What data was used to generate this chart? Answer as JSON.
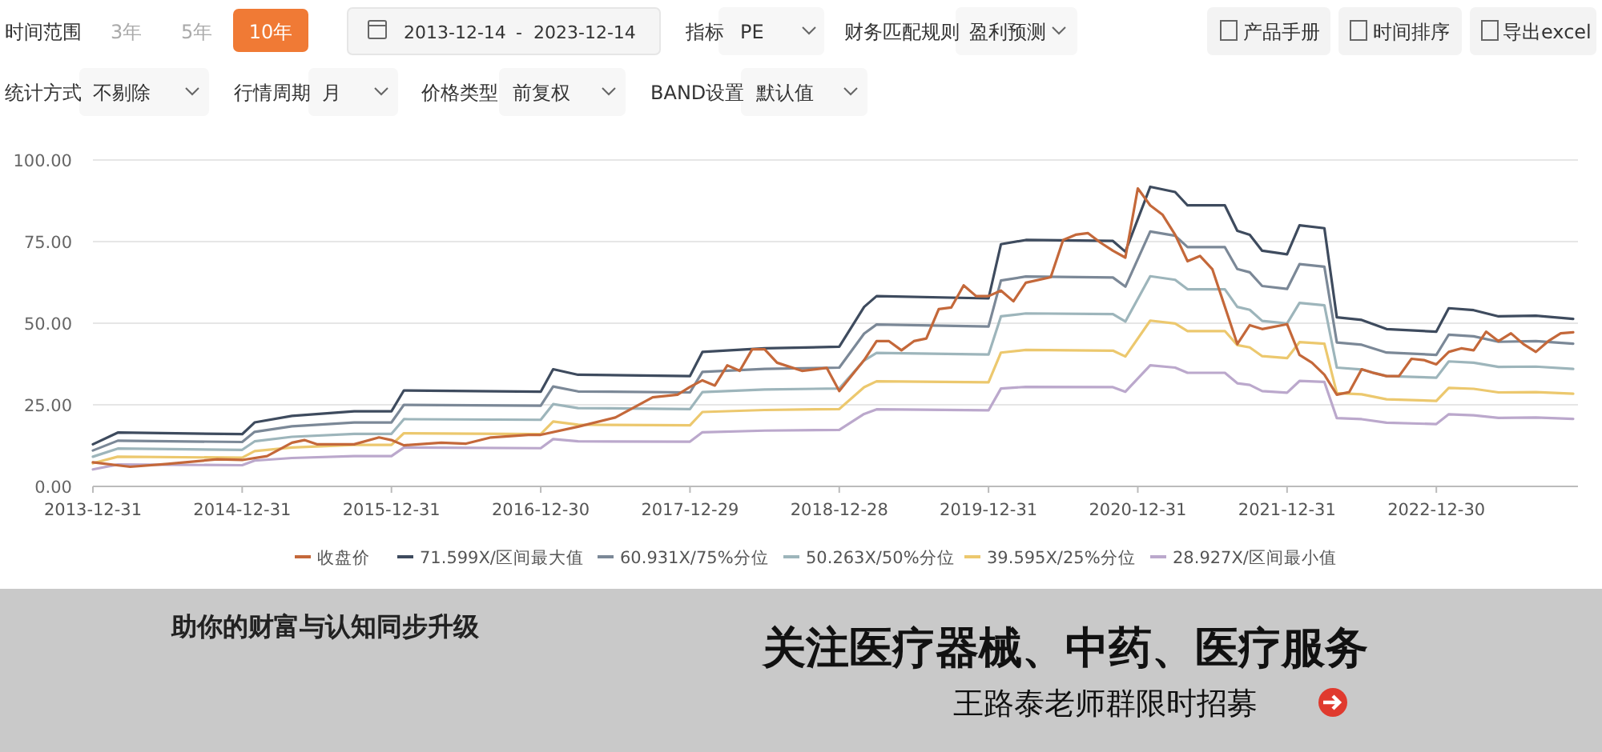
{
  "chart_data": {
    "type": "line",
    "xlim": [
      "2013-12",
      "2023-11"
    ],
    "ylim": [
      0,
      100
    ],
    "xticks": [
      {
        "value": "2013-12",
        "label": "2013-12-31"
      },
      {
        "value": "2014-12",
        "label": "2014-12-31"
      },
      {
        "value": "2015-12",
        "label": "2015-12-31"
      },
      {
        "value": "2016-12",
        "label": "2016-12-30"
      },
      {
        "value": "2017-12",
        "label": "2017-12-29"
      },
      {
        "value": "2018-12",
        "label": "2018-12-28"
      },
      {
        "value": "2019-12",
        "label": "2019-12-31"
      },
      {
        "value": "2020-12",
        "label": "2020-12-31"
      },
      {
        "value": "2021-12",
        "label": "2021-12-31"
      },
      {
        "value": "2022-12",
        "label": "2022-12-30"
      }
    ],
    "yticks": [
      {
        "value": 0,
        "label": "0.00"
      },
      {
        "value": 25,
        "label": "25.00"
      },
      {
        "value": 50,
        "label": "50.00"
      },
      {
        "value": 75,
        "label": "75.00"
      },
      {
        "value": 100,
        "label": "100.00"
      }
    ],
    "grid": "y",
    "legend": "bottom",
    "series": [
      {
        "name": "收盘价",
        "color": "#c4683a",
        "x": [
          "2013-12",
          "2014-03",
          "2014-06",
          "2014-10",
          "2014-12",
          "2015-02",
          "2015-04",
          "2015-05",
          "2015-06",
          "2015-09",
          "2015-11",
          "2015-12",
          "2016-01",
          "2016-04",
          "2016-06",
          "2016-08",
          "2016-11",
          "2016-12",
          "2017-03",
          "2017-06",
          "2017-09",
          "2017-11",
          "2017-12",
          "2018-01",
          "2018-02",
          "2018-03",
          "2018-04",
          "2018-05",
          "2018-06",
          "2018-07",
          "2018-09",
          "2018-11",
          "2018-12",
          "2019-02",
          "2019-03",
          "2019-04",
          "2019-05",
          "2019-06",
          "2019-07",
          "2019-08",
          "2019-09",
          "2019-10",
          "2019-11",
          "2019-12",
          "2020-01",
          "2020-02",
          "2020-03",
          "2020-05",
          "2020-06",
          "2020-07",
          "2020-08",
          "2020-09",
          "2020-10",
          "2020-11",
          "2020-12",
          "2021-01",
          "2021-02",
          "2021-03",
          "2021-04",
          "2021-05",
          "2021-06",
          "2021-08",
          "2021-09",
          "2021-10",
          "2021-12",
          "2022-01",
          "2022-02",
          "2022-03",
          "2022-04",
          "2022-05",
          "2022-06",
          "2022-07",
          "2022-08",
          "2022-09",
          "2022-10",
          "2022-11",
          "2022-12",
          "2023-01",
          "2023-02",
          "2023-03",
          "2023-04",
          "2023-05",
          "2023-06",
          "2023-07",
          "2023-08",
          "2023-09",
          "2023-10",
          "2023-11"
        ],
        "values": [
          7.4,
          6.0,
          6.9,
          8.3,
          8.1,
          9.3,
          13.4,
          14.2,
          12.9,
          12.9,
          15.0,
          14.2,
          12.6,
          13.4,
          13.1,
          15.0,
          15.8,
          15.8,
          18.3,
          21.1,
          27.3,
          28.1,
          30.5,
          32.5,
          30.9,
          37.1,
          35.4,
          42.0,
          42.0,
          37.9,
          35.4,
          36.3,
          29.2,
          38.7,
          44.5,
          44.5,
          41.7,
          44.5,
          45.3,
          54.3,
          54.8,
          61.6,
          58.3,
          58.3,
          60.0,
          56.7,
          62.4,
          64.1,
          75.5,
          77.1,
          77.6,
          74.7,
          72.2,
          70.1,
          91.3,
          86.1,
          83.2,
          77.1,
          69.0,
          70.6,
          66.5,
          43.6,
          49.4,
          48.2,
          49.7,
          40.3,
          37.9,
          34.2,
          28.1,
          28.9,
          35.9,
          34.7,
          33.8,
          33.8,
          39.1,
          38.7,
          37.4,
          41.2,
          42.3,
          41.7,
          47.4,
          44.5,
          46.9,
          43.6,
          41.2,
          44.5,
          46.9,
          47.2
        ]
      },
      {
        "name": "71.599X/区间最大值",
        "color": "#3e4b5e",
        "values": [
          12.9,
          16.5,
          16.0,
          19.6,
          21.6,
          23.0,
          23.0,
          29.4,
          29.0,
          35.9,
          34.2,
          33.8,
          41.2,
          42.3,
          42.8,
          55.0,
          58.3,
          57.6,
          74.2,
          75.5,
          75.2,
          71.9,
          91.8,
          90.2,
          86.1,
          86.1,
          78.3,
          77.1,
          72.2,
          71.1,
          80.0,
          79.1,
          51.8,
          51.0,
          48.2,
          47.4,
          54.6,
          54.0,
          52.1,
          52.3,
          51.3
        ]
      },
      {
        "name": "60.931X/75%分位",
        "color": "#7b8897",
        "values": [
          11.0,
          14.0,
          13.6,
          16.7,
          18.4,
          19.6,
          19.6,
          25.0,
          24.7,
          30.6,
          29.1,
          28.8,
          35.1,
          36.0,
          36.4,
          46.8,
          49.6,
          49.0,
          63.1,
          64.3,
          64.0,
          61.2,
          78.1,
          76.8,
          73.3,
          73.3,
          66.6,
          65.6,
          61.4,
          60.5,
          68.1,
          67.3,
          44.1,
          43.4,
          41.0,
          40.3,
          46.5,
          46.0,
          44.3,
          44.5,
          43.7
        ]
      },
      {
        "name": "50.263X/50%分位",
        "color": "#9db5bb",
        "values": [
          9.1,
          11.6,
          11.2,
          13.8,
          15.2,
          16.1,
          16.1,
          20.6,
          20.4,
          25.2,
          24.0,
          23.7,
          28.9,
          29.7,
          30.0,
          38.6,
          40.9,
          40.4,
          52.1,
          53.0,
          52.8,
          50.5,
          64.4,
          63.3,
          60.4,
          60.4,
          55.0,
          54.1,
          50.7,
          49.9,
          56.2,
          55.5,
          36.4,
          35.8,
          33.8,
          33.3,
          38.3,
          37.9,
          36.6,
          36.7,
          36.0
        ]
      },
      {
        "name": "39.595X/25%分位",
        "color": "#ecc86e",
        "values": [
          7.1,
          9.1,
          8.8,
          10.8,
          11.9,
          12.7,
          12.7,
          16.3,
          16.0,
          19.9,
          18.9,
          18.7,
          22.8,
          23.4,
          23.7,
          30.4,
          32.2,
          31.9,
          41.0,
          41.8,
          41.6,
          39.8,
          50.8,
          49.9,
          47.6,
          47.6,
          43.3,
          42.6,
          39.9,
          39.3,
          44.2,
          43.7,
          28.6,
          28.2,
          26.7,
          26.2,
          30.2,
          29.9,
          28.8,
          28.9,
          28.4
        ]
      },
      {
        "name": "28.927X/区间最小值",
        "color": "#bba8cc",
        "values": [
          5.2,
          6.7,
          6.5,
          7.9,
          8.7,
          9.3,
          9.3,
          11.9,
          11.7,
          14.5,
          13.8,
          13.7,
          16.6,
          17.1,
          17.3,
          22.2,
          23.6,
          23.3,
          30.0,
          30.5,
          30.4,
          29.0,
          37.1,
          36.4,
          34.8,
          34.8,
          31.6,
          31.1,
          29.2,
          28.7,
          32.3,
          32.0,
          20.9,
          20.6,
          19.5,
          19.1,
          22.1,
          21.8,
          21.0,
          21.1,
          20.7
        ]
      }
    ],
    "x": [
      "2013-12",
      "2014-02",
      "2014-12",
      "2015-01",
      "2015-04",
      "2015-09",
      "2015-12",
      "2016-01",
      "2016-12",
      "2017-01",
      "2017-03",
      "2017-12",
      "2018-01",
      "2018-06",
      "2018-12",
      "2019-02",
      "2019-03",
      "2019-12",
      "2020-01",
      "2020-03",
      "2020-10",
      "2020-11",
      "2021-01",
      "2021-03",
      "2021-04",
      "2021-07",
      "2021-08",
      "2021-09",
      "2021-10",
      "2021-12",
      "2022-01",
      "2022-03",
      "2022-04",
      "2022-06",
      "2022-08",
      "2022-12",
      "2023-01",
      "2023-03",
      "2023-05",
      "2023-08",
      "2023-11"
    ],
    "annotations": [
      "时间范围",
      "3年",
      "5年",
      "10年",
      "2013-12-14",
      "-",
      "2023-12-14",
      "指标",
      "PE",
      "财务匹配规则",
      "盈利预测",
      "产品手册",
      "时间排序",
      "导出excel",
      "统计方式",
      "不剔除",
      "行情周期",
      "月",
      "价格类型",
      "前复权",
      "BAND设置",
      "默认值",
      "助你的财富与认知同步升级",
      "关注医疗器械、中药、医疗服务",
      "王路泰老师群限时招募"
    ]
  }
}
